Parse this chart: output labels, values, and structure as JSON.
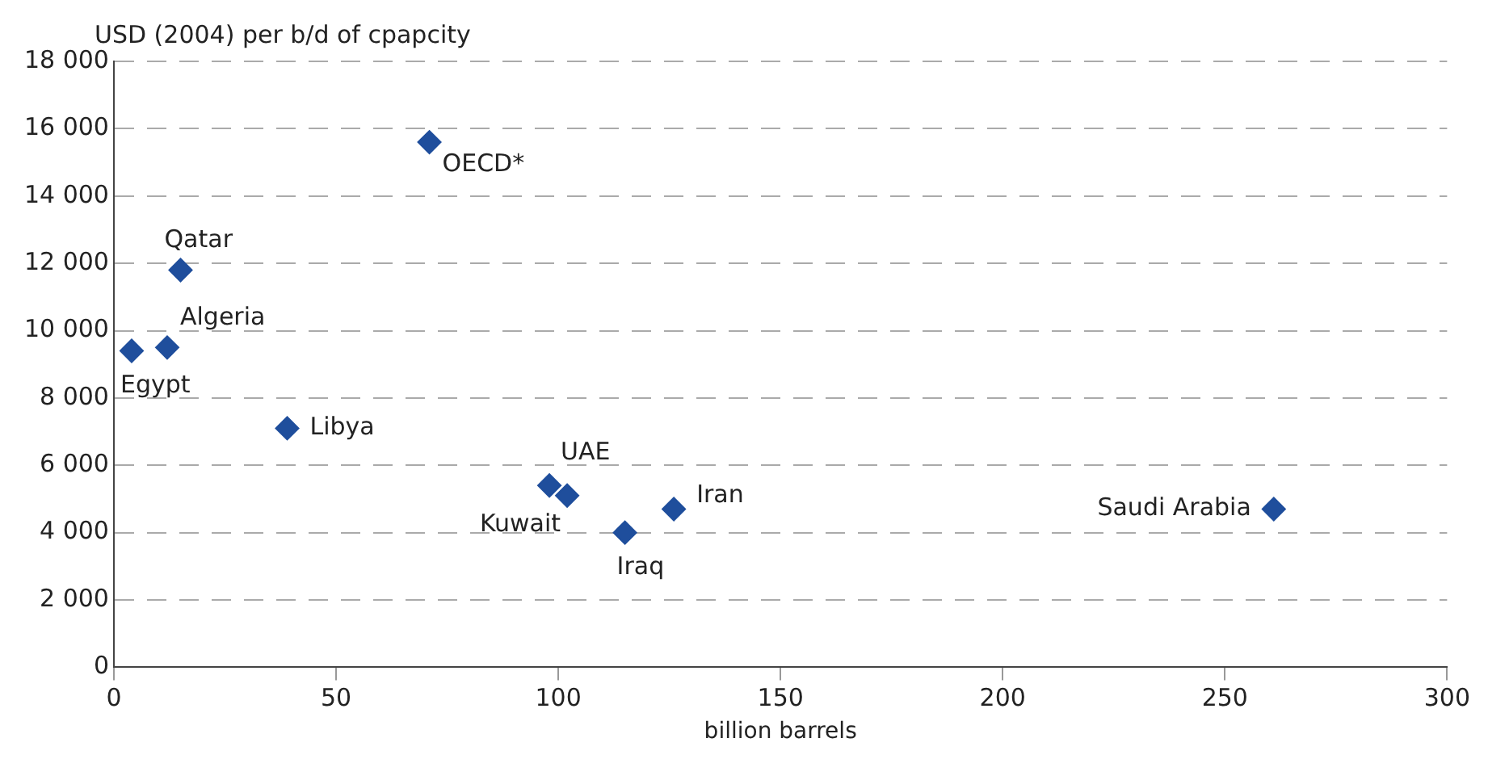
{
  "chart_data": {
    "type": "scatter",
    "ylabel": "USD (2004) per b/d of cpapcity",
    "xlabel": "billion barrels",
    "x": [
      71,
      15,
      12,
      4,
      39,
      98,
      102,
      115,
      126,
      261
    ],
    "series": [
      {
        "color": "#1f4e9c",
        "values": [
          15600,
          11800,
          9500,
          9400,
          7100,
          5400,
          5100,
          4000,
          4700,
          4700
        ]
      }
    ],
    "annotations": [
      {
        "text": "OECD*",
        "x": 71,
        "y": 15600
      },
      {
        "text": "Qatar",
        "x": 15,
        "y": 11800
      },
      {
        "text": "Algeria",
        "x": 12,
        "y": 9500
      },
      {
        "text": "Egypt",
        "x": 4,
        "y": 9400
      },
      {
        "text": "Libya",
        "x": 39,
        "y": 7100
      },
      {
        "text": "UAE",
        "x": 98,
        "y": 5400
      },
      {
        "text": "Kuwait",
        "x": 102,
        "y": 5100
      },
      {
        "text": "Iraq",
        "x": 115,
        "y": 4000
      },
      {
        "text": "Iran",
        "x": 126,
        "y": 4700
      },
      {
        "text": "Saudi Arabia",
        "x": 261,
        "y": 4700
      }
    ],
    "xlim": [
      0,
      300
    ],
    "xticks": [
      0,
      50,
      100,
      150,
      200,
      250,
      300
    ],
    "ylim": [
      0,
      18000
    ],
    "yticks": [
      0,
      {
        "value": 2000,
        "label": "2 000"
      },
      {
        "value": 4000,
        "label": "4 000"
      },
      {
        "value": 6000,
        "label": "6 000"
      },
      {
        "value": 8000,
        "label": "8 000"
      },
      {
        "value": 10000,
        "label": "10 000"
      },
      {
        "value": 12000,
        "label": "12 000"
      },
      {
        "value": 14000,
        "label": "14 000"
      },
      {
        "value": 16000,
        "label": "16 000"
      },
      {
        "value": 18000,
        "label": "18 000"
      }
    ],
    "grid": "y",
    "legend": false,
    "marker": "diamond"
  }
}
